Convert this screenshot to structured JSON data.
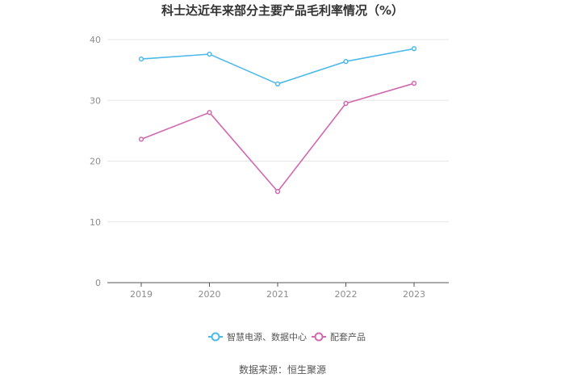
{
  "chart_data": {
    "type": "line",
    "title": "科士达近年来部分主要产品毛利率情况（%）",
    "xlabel": "",
    "ylabel": "",
    "categories": [
      "2019",
      "2020",
      "2021",
      "2022",
      "2023"
    ],
    "ylim": [
      0,
      40
    ],
    "yticks": [
      0,
      10,
      20,
      30,
      40
    ],
    "grid": true,
    "legend_position": "bottom",
    "series": [
      {
        "name": "智慧电源、数据中心",
        "color": "#4cb9ea",
        "values": [
          36.8,
          37.6,
          32.7,
          36.4,
          38.5
        ]
      },
      {
        "name": "配套产品",
        "color": "#d268b0",
        "values": [
          23.6,
          28.0,
          15.0,
          29.5,
          32.8
        ]
      }
    ]
  },
  "source_text": "数据来源：恒生聚源"
}
